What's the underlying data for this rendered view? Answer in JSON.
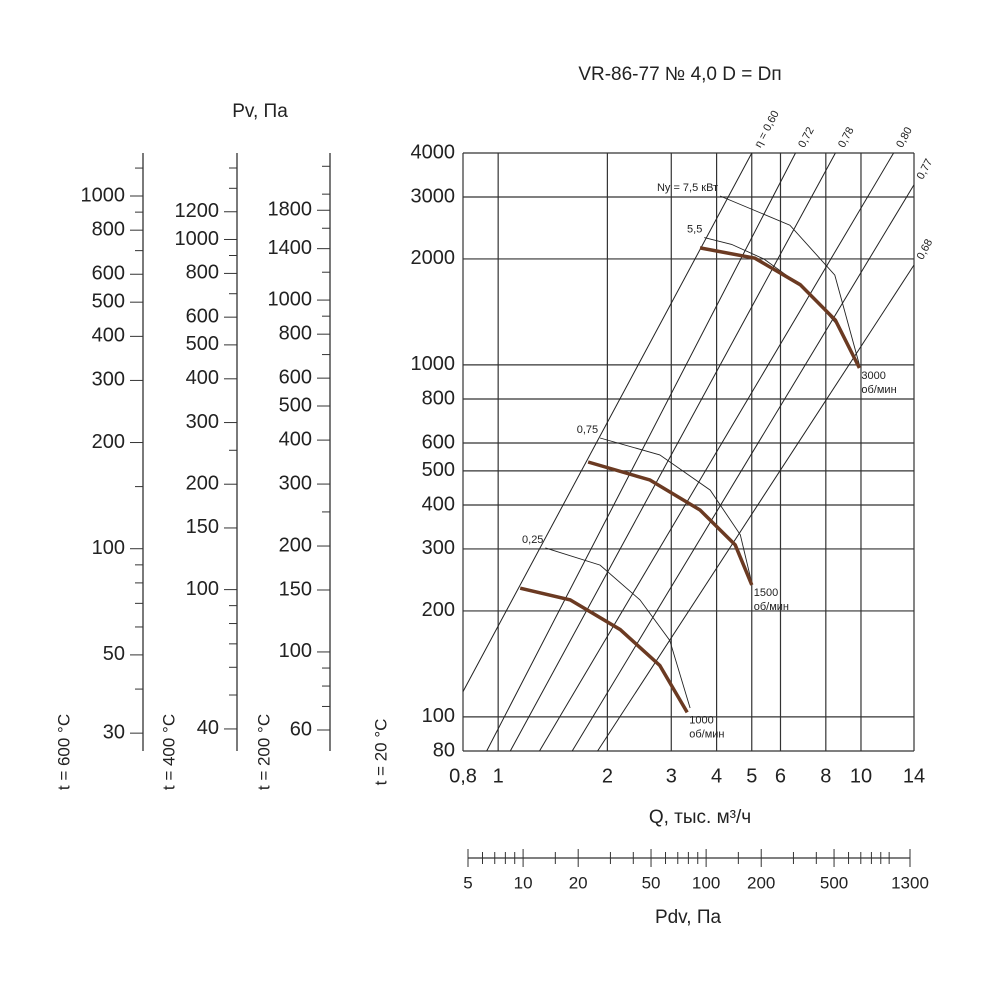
{
  "chart_data": {
    "type": "line",
    "title": "VR-86-77 № 4,0 D = Dп",
    "ylabel": "Pv, Па",
    "xlabel": "Q, тыс. м³/ч",
    "axis_label": "t = 20 °C",
    "xscale": "log",
    "yscale": "log",
    "grid": true,
    "xlim": [
      0.8,
      14
    ],
    "ylim": [
      80,
      4000
    ],
    "xticks": [
      {
        "value": 0.8,
        "label": "0,8"
      },
      1,
      2,
      3,
      4,
      5,
      6,
      8,
      10,
      14
    ],
    "yticks": [
      80,
      100,
      200,
      300,
      400,
      500,
      600,
      800,
      1000,
      2000,
      3000,
      4000
    ],
    "speed_curves": [
      {
        "label": [
          "1000",
          "об/мин"
        ],
        "color": "#6b3a22",
        "x": [
          1.15,
          1.58,
          2.17,
          2.79,
          3.32
        ],
        "values": [
          232,
          215,
          177,
          140,
          103
        ]
      },
      {
        "label": [
          "1500",
          "об/мин"
        ],
        "color": "#6b3a22",
        "x": [
          1.77,
          2.62,
          3.6,
          4.5,
          5.0
        ],
        "values": [
          530,
          471,
          387,
          308,
          237
        ]
      },
      {
        "label": [
          "3000",
          "об/мин"
        ],
        "color": "#6b3a22",
        "x": [
          3.6,
          5.1,
          6.8,
          8.5,
          9.9
        ],
        "values": [
          2150,
          2010,
          1690,
          1340,
          980
        ]
      }
    ],
    "power_curves": [
      {
        "label": "0,25",
        "x": [
          1.35,
          1.91,
          2.46,
          2.97,
          3.38
        ],
        "values": [
          302,
          270,
          215,
          165,
          106
        ]
      },
      {
        "label": "0,75",
        "x": [
          1.91,
          2.79,
          3.84,
          4.65,
          5.0
        ],
        "values": [
          620,
          555,
          441,
          329,
          240
        ]
      },
      {
        "label": "5,5",
        "x": [
          3.7,
          4.4,
          5.4,
          7.0,
          8.6,
          9.8
        ],
        "values": [
          2300,
          2200,
          2000,
          1650,
          1300,
          990
        ]
      },
      {
        "label": "Nу = 7,5 кВт",
        "x": [
          4.09,
          6.37,
          8.47,
          9.9
        ],
        "values": [
          3020,
          2495,
          1800,
          1000
        ]
      }
    ],
    "efficiency_lines": [
      {
        "label": "η = 0,60",
        "x": [
          0.8,
          5.0
        ],
        "values": [
          118,
          4000
        ]
      },
      {
        "label": "0,72",
        "x": [
          0.93,
          6.6
        ],
        "values": [
          80,
          4000
        ]
      },
      {
        "label": "0,78",
        "x": [
          1.08,
          8.5
        ],
        "values": [
          80,
          4000
        ]
      },
      {
        "label": "0,80",
        "x": [
          1.3,
          12.3
        ],
        "values": [
          80,
          4000
        ]
      },
      {
        "label": "0,77",
        "x": [
          1.6,
          14
        ],
        "values": [
          80,
          3250
        ]
      },
      {
        "label": "0,68",
        "x": [
          1.88,
          14
        ],
        "values": [
          80,
          1923
        ]
      }
    ],
    "pressure_scales": [
      {
        "label": "t = 600 °C",
        "ylim": [
          26.7,
          1324
        ],
        "yticks": [
          30,
          50,
          100,
          200,
          300,
          400,
          500,
          600,
          800,
          1000
        ],
        "minor_ticks": [
          40,
          60,
          70,
          80,
          90,
          150,
          700,
          900,
          1200
        ]
      },
      {
        "label": "t = 400 °C",
        "ylim": [
          34.6,
          1766
        ],
        "yticks": [
          40,
          100,
          150,
          200,
          300,
          400,
          500,
          600,
          800,
          1000,
          1200
        ],
        "minor_ticks": [
          50,
          60,
          70,
          80,
          90,
          250,
          700,
          900,
          1400,
          1600
        ]
      },
      {
        "label": "t = 200 °C",
        "ylim": [
          52.3,
          2618
        ],
        "yticks": [
          60,
          100,
          150,
          200,
          300,
          400,
          500,
          600,
          800,
          1000,
          1400,
          1800
        ],
        "minor_ticks": [
          70,
          80,
          90,
          250,
          700,
          900,
          1200,
          1600,
          2000,
          2400
        ]
      }
    ],
    "dynamic_pressure_scale": {
      "label": "Pdv, Па",
      "xlim": [
        5,
        1300
      ],
      "xticks": [
        5,
        10,
        20,
        50,
        100,
        200,
        500,
        1300
      ],
      "minor_ticks": [
        6,
        7,
        8,
        9,
        15,
        30,
        40,
        60,
        70,
        80,
        90,
        150,
        300,
        400,
        600,
        700,
        800,
        900,
        1000
      ]
    }
  }
}
